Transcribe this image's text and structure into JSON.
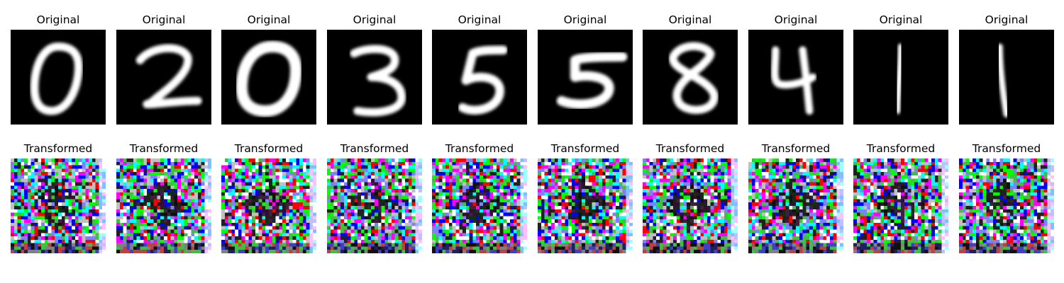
{
  "figure": {
    "panels": [
      {
        "original_title": "Original",
        "transformed_title": "Transformed",
        "digit": "0"
      },
      {
        "original_title": "Original",
        "transformed_title": "Transformed",
        "digit": "2"
      },
      {
        "original_title": "Original",
        "transformed_title": "Transformed",
        "digit": "0"
      },
      {
        "original_title": "Original",
        "transformed_title": "Transformed",
        "digit": "3"
      },
      {
        "original_title": "Original",
        "transformed_title": "Transformed",
        "digit": "5"
      },
      {
        "original_title": "Original",
        "transformed_title": "Transformed",
        "digit": "5"
      },
      {
        "original_title": "Original",
        "transformed_title": "Transformed",
        "digit": "8"
      },
      {
        "original_title": "Original",
        "transformed_title": "Transformed",
        "digit": "4"
      },
      {
        "original_title": "Original",
        "transformed_title": "Transformed",
        "digit": "1"
      },
      {
        "original_title": "Original",
        "transformed_title": "Transformed",
        "digit": "1"
      }
    ],
    "colors": {
      "background": "#ffffff",
      "image_background": "#000000",
      "digit_stroke": "#ffffff",
      "noise_palette": [
        "#00ff00",
        "#0000ff",
        "#ff00ff",
        "#00ffff",
        "#ff0000",
        "#ffffff",
        "#202020",
        "#8080ff",
        "#40c040",
        "#c0c0c0"
      ]
    },
    "icons": {
      "original_image": "grayscale-handwritten-digit",
      "transformed_image": "rgb-noise-mosaic"
    }
  }
}
